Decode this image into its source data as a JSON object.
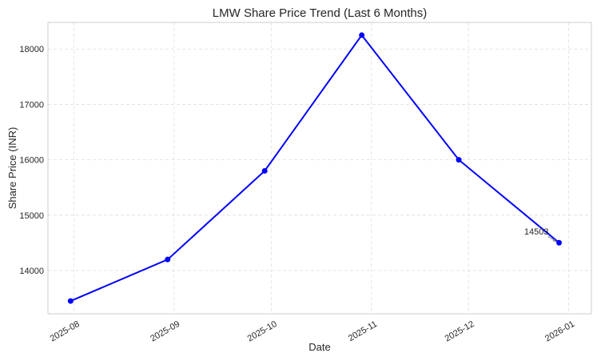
{
  "chart_data": {
    "type": "line",
    "title": "LMW Share Price Trend (Last 6 Months)",
    "xlabel": "Date",
    "ylabel": "Share Price (INR)",
    "x_tick_labels": [
      "2025-08",
      "2025-09",
      "2025-10",
      "2025-11",
      "2025-12",
      "2026-01"
    ],
    "y_tick_labels": [
      "14000",
      "15000",
      "16000",
      "17000",
      "18000"
    ],
    "y_ticks": [
      14000,
      15000,
      16000,
      17000,
      18000
    ],
    "ylim": [
      13220,
      18480
    ],
    "xlim": [
      "2025-07-24",
      "2026-01-08"
    ],
    "grid": true,
    "series": [
      {
        "color": "#0000ff",
        "marker": "circle",
        "points": [
          {
            "x": "2025-07-31",
            "y": 13450
          },
          {
            "x": "2025-08-30",
            "y": 14200
          },
          {
            "x": "2025-09-29",
            "y": 15800
          },
          {
            "x": "2025-10-29",
            "y": 18250
          },
          {
            "x": "2025-11-28",
            "y": 16000
          },
          {
            "x": "2025-12-29",
            "y": 14503
          }
        ]
      }
    ],
    "annotation": {
      "text": "14503",
      "x": "2025-12-29",
      "y": 14503
    }
  }
}
